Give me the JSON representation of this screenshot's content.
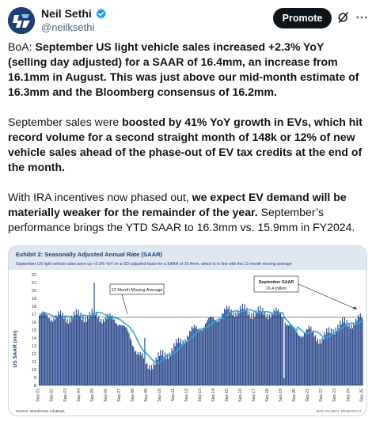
{
  "author": {
    "name": "Neil Sethi",
    "handle": "@neilksethi"
  },
  "actions": {
    "promote_label": "Promote"
  },
  "tweet": {
    "p1": [
      {
        "t": "BoA: ",
        "b": false
      },
      {
        "t": "September US light vehicle sales increased +2.3% YoY (selling day adjusted) for a SAAR of 16.4mm, an increase from 16.1mm in August. This was just above our mid-month estimate of 16.3mm and the Bloomberg consensus of 16.2mm.",
        "b": true
      }
    ],
    "p2": [
      {
        "t": "September sales were ",
        "b": false
      },
      {
        "t": "boosted by 41% YoY growth in EVs, which hit record volume for a second straight month of 148k or 12% of new vehicle sales ahead of the phase-out of EV tax credits at the end of the month.",
        "b": true
      }
    ],
    "p3": [
      {
        "t": "With IRA incentives now phased out, ",
        "b": false
      },
      {
        "t": "we expect EV demand will be materially weaker for the remainder of the year.",
        "b": true
      },
      {
        "t": " September’s performance brings the YTD SAAR to 16.3mm vs. 15.9mm in FY2024.",
        "b": false
      }
    ]
  },
  "chart_data": {
    "type": "bar",
    "title": "Exhibit 2: Seasonally Adjusted Annual Rate (SAAR)",
    "subtitle": "September US light vehicle sales were up +2.3% YoY on a SD-adjusted basis for a SAAR of 16.4mm, which is in line with the 12-month moving average",
    "ylabel": "US SAAR (mm)",
    "ylim": [
      8,
      22
    ],
    "yticks": [
      8,
      9,
      10,
      11,
      12,
      13,
      14,
      15,
      16,
      17,
      18,
      19,
      20,
      21,
      22
    ],
    "xticks": [
      "Sep-01",
      "Sep-02",
      "Sep-03",
      "Sep-04",
      "Sep-05",
      "Sep-06",
      "Sep-07",
      "Sep-08",
      "Sep-09",
      "Sep-10",
      "Sep-11",
      "Sep-12",
      "Sep-13",
      "Sep-14",
      "Sep-15",
      "Sep-16",
      "Sep-17",
      "Sep-18",
      "Sep-19",
      "Sep-20",
      "Sep-21",
      "Sep-22",
      "Sep-23",
      "Sep-24",
      "Sep-25"
    ],
    "annual_levels": [
      {
        "year": "Sep-01",
        "value": 16.8
      },
      {
        "year": "Sep-02",
        "value": 16.7
      },
      {
        "year": "Sep-03",
        "value": 16.6
      },
      {
        "year": "Sep-04",
        "value": 16.8
      },
      {
        "year": "Sep-05",
        "value": 16.9
      },
      {
        "year": "Sep-06",
        "value": 16.5
      },
      {
        "year": "Sep-07",
        "value": 16.1
      },
      {
        "year": "Sep-08",
        "value": 13.2
      },
      {
        "year": "Sep-09",
        "value": 10.4
      },
      {
        "year": "Sep-10",
        "value": 11.6
      },
      {
        "year": "Sep-11",
        "value": 12.7
      },
      {
        "year": "Sep-12",
        "value": 14.4
      },
      {
        "year": "Sep-13",
        "value": 15.5
      },
      {
        "year": "Sep-14",
        "value": 16.4
      },
      {
        "year": "Sep-15",
        "value": 17.4
      },
      {
        "year": "Sep-16",
        "value": 17.5
      },
      {
        "year": "Sep-17",
        "value": 17.2
      },
      {
        "year": "Sep-18",
        "value": 17.2
      },
      {
        "year": "Sep-19",
        "value": 17.0
      },
      {
        "year": "Sep-20",
        "value": 14.5
      },
      {
        "year": "Sep-21",
        "value": 14.9
      },
      {
        "year": "Sep-22",
        "value": 13.8
      },
      {
        "year": "Sep-23",
        "value": 15.5
      },
      {
        "year": "Sep-24",
        "value": 15.9
      },
      {
        "year": "Sep-25",
        "value": 16.4
      }
    ],
    "series": [
      {
        "name": "12 Month Moving Average"
      }
    ],
    "annotations": [
      {
        "label": "12 Month Moving Average"
      },
      {
        "label": "September SAAR",
        "sublabel": "16.4 million"
      }
    ],
    "source": "Source: WardsAuto InfoBank",
    "watermark": "BofA GLOBAL RESEARCH",
    "grid": false
  },
  "colors": {
    "bars": "#2b4a8c",
    "moving_average": "#29abe2",
    "header_band": "#dfe7f1",
    "title": "#1f3d73",
    "accent": "#1d9bf0"
  }
}
